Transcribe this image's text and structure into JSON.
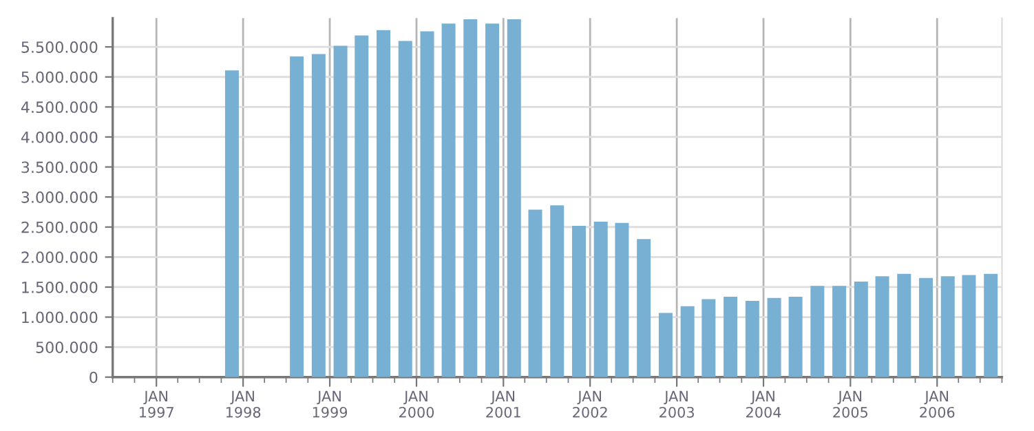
{
  "chart_data": {
    "type": "bar",
    "color": "#77b0d3",
    "x": [
      "1997-11-15",
      "1998-08-15",
      "1998-11-15",
      "1999-02-15",
      "1999-05-15",
      "1999-08-15",
      "1999-11-15",
      "2000-02-15",
      "2000-05-15",
      "2000-08-15",
      "2000-11-15",
      "2001-02-15",
      "2001-05-15",
      "2001-08-15",
      "2001-11-15",
      "2002-02-15",
      "2002-05-15",
      "2002-08-15",
      "2002-11-15",
      "2003-02-15",
      "2003-05-15",
      "2003-08-15",
      "2003-11-15",
      "2004-02-15",
      "2004-05-15",
      "2004-08-15",
      "2004-11-15",
      "2005-02-15",
      "2005-05-15",
      "2005-08-15",
      "2005-11-15",
      "2006-02-15",
      "2006-05-15",
      "2006-08-15"
    ],
    "values": [
      5110000,
      5340000,
      5380000,
      5520000,
      5690000,
      5780000,
      5600000,
      5760000,
      5890000,
      5960000,
      5890000,
      5960000,
      2790000,
      2860000,
      2520000,
      2590000,
      2570000,
      2300000,
      1070000,
      1180000,
      1300000,
      1340000,
      1270000,
      1320000,
      1340000,
      1520000,
      1520000,
      1590000,
      1680000,
      1720000,
      1650000,
      1680000,
      1700000,
      1720000
    ],
    "xlim": [
      "1996-07-01",
      "2006-10-01"
    ],
    "xticks": [
      {
        "value": "1997-01-01",
        "label": "JAN\n1997"
      },
      {
        "value": "1998-01-01",
        "label": "JAN\n1998"
      },
      {
        "value": "1999-01-01",
        "label": "JAN\n1999"
      },
      {
        "value": "2000-01-01",
        "label": "JAN\n2000"
      },
      {
        "value": "2001-01-01",
        "label": "JAN\n2001"
      },
      {
        "value": "2002-01-01",
        "label": "JAN\n2002"
      },
      {
        "value": "2003-01-01",
        "label": "JAN\n2003"
      },
      {
        "value": "2004-01-01",
        "label": "JAN\n2004"
      },
      {
        "value": "2005-01-01",
        "label": "JAN\n2005"
      },
      {
        "value": "2006-01-01",
        "label": "JAN\n2006"
      }
    ],
    "ylim": [
      0,
      5980000
    ],
    "yticks": [
      0,
      {
        "value": 500000,
        "label": "500.000"
      },
      {
        "value": 1000000,
        "label": "1.000.000"
      },
      {
        "value": 1500000,
        "label": "1.500.000"
      },
      {
        "value": 2000000,
        "label": "2.000.000"
      },
      {
        "value": 2500000,
        "label": "2.500.000"
      },
      {
        "value": 3000000,
        "label": "3.000.000"
      },
      {
        "value": 3500000,
        "label": "3.500.000"
      },
      {
        "value": 4000000,
        "label": "4.000.000"
      },
      {
        "value": 4500000,
        "label": "4.500.000"
      },
      {
        "value": 5000000,
        "label": "5.000.000"
      },
      {
        "value": 5500000,
        "label": "5.500.000"
      }
    ],
    "grid": true
  }
}
